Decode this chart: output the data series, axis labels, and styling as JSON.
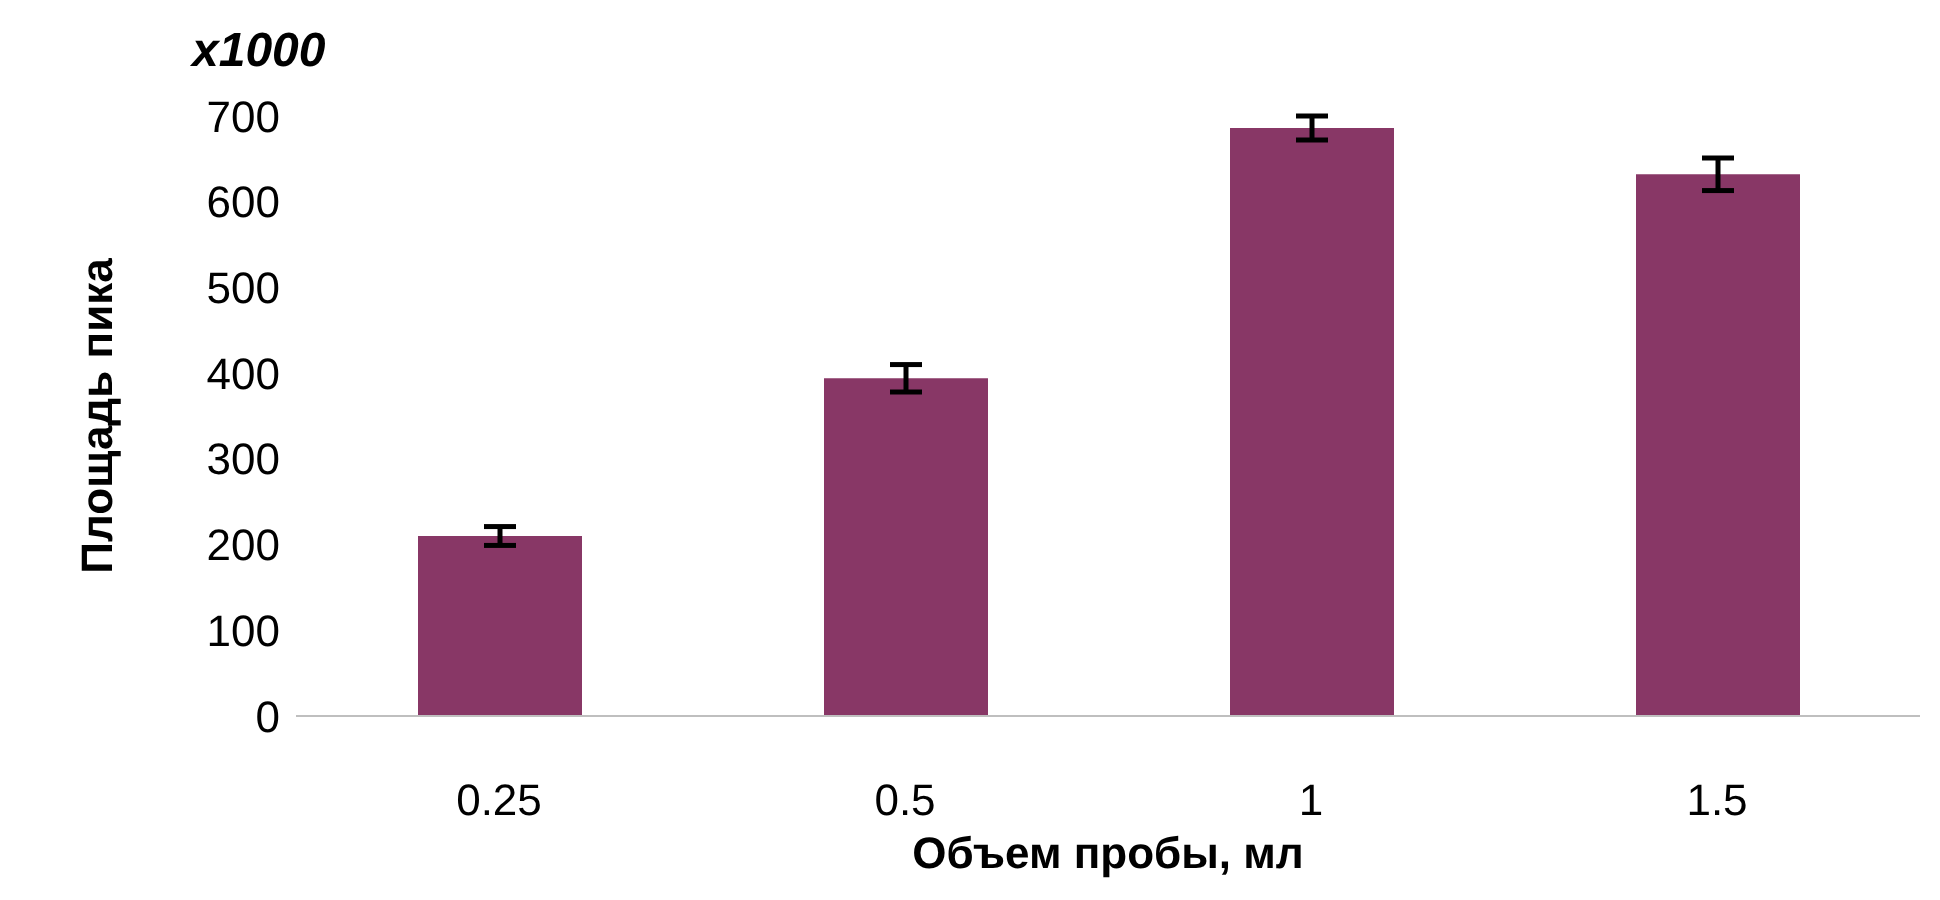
{
  "chart_data": {
    "type": "bar",
    "xlabel": "Объем пробы, мл",
    "ylabel": "Площадь пика",
    "annotations": [
      "x1000"
    ],
    "categories": [
      "0.25",
      "0.5",
      "1",
      "1.5"
    ],
    "series": [
      {
        "color": "#883766",
        "values": [
          210,
          394,
          686,
          632
        ],
        "errors": [
          11,
          16,
          14,
          19
        ]
      }
    ],
    "ylim": [
      0,
      700
    ],
    "yticks": [
      0,
      100,
      200,
      300,
      400,
      500,
      600,
      700
    ],
    "grid": false,
    "legend": false
  }
}
